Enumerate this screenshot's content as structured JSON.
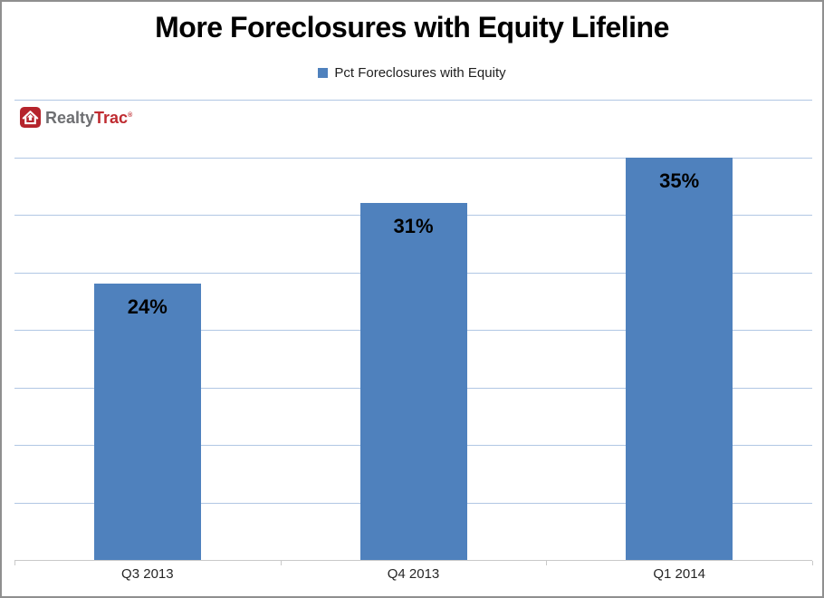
{
  "header": {
    "title": "More Foreclosures with Equity Lifeline"
  },
  "legend": {
    "label": "Pct Foreclosures with Equity"
  },
  "logo": {
    "part1": "Realty",
    "part2": "Trac",
    "mark": "®"
  },
  "chart_data": {
    "type": "bar",
    "title": "More Foreclosures with Equity Lifeline",
    "categories": [
      "Q3 2013",
      "Q4 2013",
      "Q1 2014"
    ],
    "values": [
      24,
      31,
      35
    ],
    "data_labels": [
      "24%",
      "31%",
      "35%"
    ],
    "series_name": "Pct Foreclosures with Equity",
    "xlabel": "",
    "ylabel": "",
    "ylim": [
      0,
      40
    ],
    "grid_step": 5,
    "grid": true,
    "legend_position": "top",
    "data_label_position": "inside-end",
    "bar_color": "#4f81bd",
    "gridline_color": "#b1c7e4",
    "axis_line_color": "#c9c9c9",
    "title_color": "#000000",
    "data_label_color": "#000000",
    "logo_red": "#b5242c",
    "logo_gray": "#6e6f72"
  }
}
